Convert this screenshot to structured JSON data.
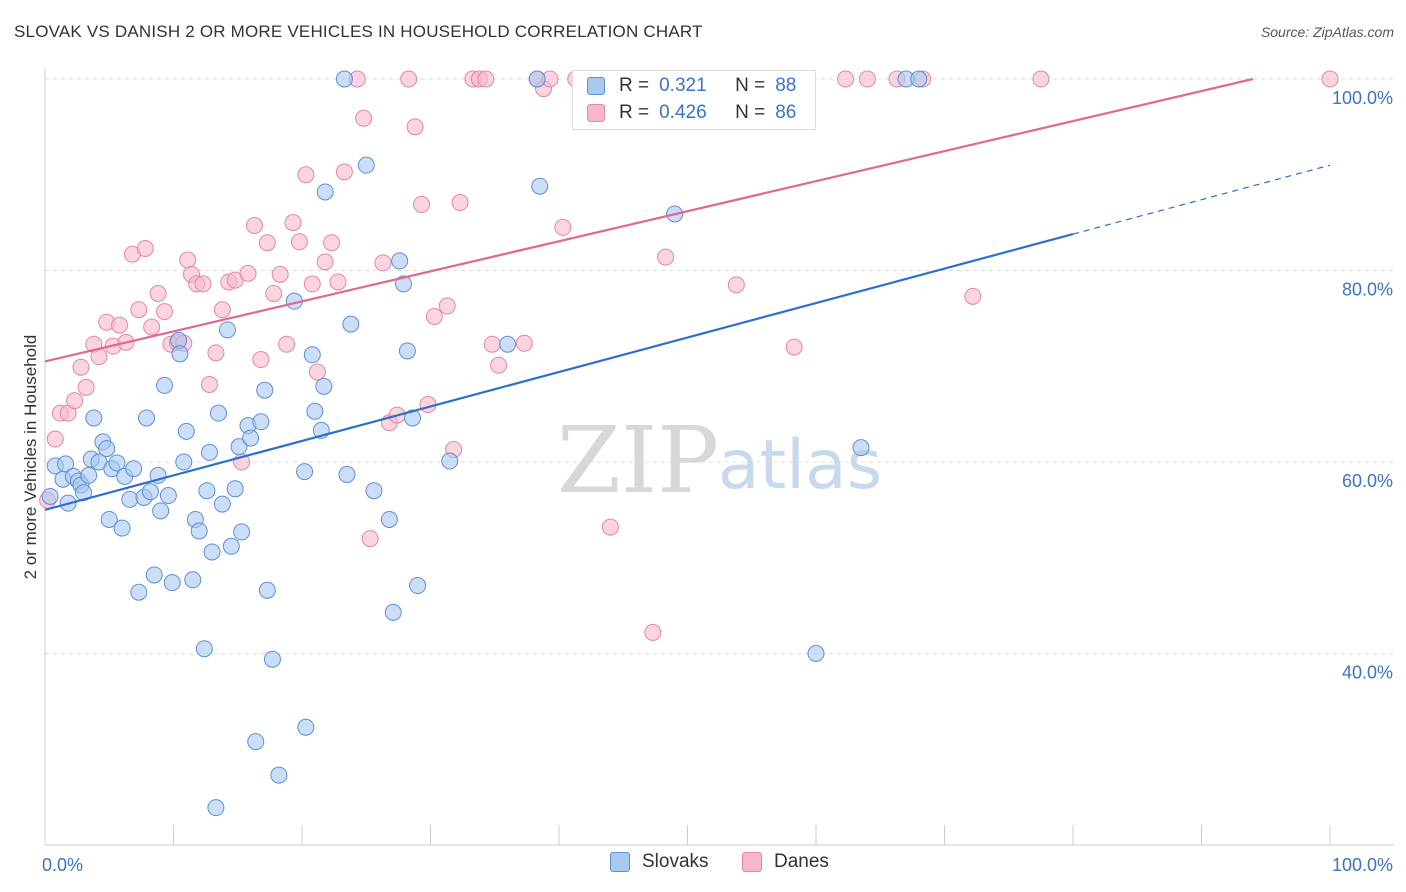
{
  "title": "SLOVAK VS DANISH 2 OR MORE VEHICLES IN HOUSEHOLD CORRELATION CHART",
  "source": "Source: ZipAtlas.com",
  "watermark": {
    "zip": "ZIP",
    "atlas": "atlas"
  },
  "legend": {
    "r_label": "R =",
    "n_label": "N =",
    "rows": [
      {
        "r": "0.321",
        "n": "88"
      },
      {
        "r": "0.426",
        "n": "86"
      }
    ]
  },
  "bottom_legend": [
    "Slovaks",
    "Danes"
  ],
  "colors": {
    "slovak_fill": "#a9c8ef",
    "slovak_stroke": "#5f8fd6",
    "slovak_line": "#2e6fcc",
    "dane_fill": "#f6b7c9",
    "dane_stroke": "#e487a6",
    "dane_line": "#e06892",
    "axis_value_text": "#3a73c8",
    "grid": "#dddddd"
  },
  "chart_data": {
    "type": "scatter",
    "title": "SLOVAK VS DANISH 2 OR MORE VEHICLES IN HOUSEHOLD CORRELATION CHART",
    "xlabel": "",
    "ylabel": "2 or more Vehicles in Household",
    "xlim": [
      0,
      100
    ],
    "ylim": [
      20,
      100
    ],
    "x_tick_labels": [
      "0.0%",
      "100.0%"
    ],
    "y_ticks": [
      40,
      60,
      80,
      100
    ],
    "y_tick_labels": [
      "40.0%",
      "60.0%",
      "80.0%",
      "100.0%"
    ],
    "grid": true,
    "legend_position": "top-center",
    "series": [
      {
        "name": "Slovaks",
        "r": 0.321,
        "n": 88,
        "trend": {
          "x0": 0,
          "y0": 55.0,
          "x1": 80,
          "y1": 83.8,
          "dashed_to_x": 100,
          "dashed_to_y": 91.0
        },
        "points": [
          [
            0.4,
            56.4
          ],
          [
            0.8,
            59.6
          ],
          [
            1.4,
            58.2
          ],
          [
            1.6,
            59.8
          ],
          [
            1.8,
            55.7
          ],
          [
            2.2,
            58.5
          ],
          [
            2.6,
            58.0
          ],
          [
            2.8,
            57.6
          ],
          [
            3.0,
            56.8
          ],
          [
            3.4,
            58.6
          ],
          [
            3.6,
            60.3
          ],
          [
            3.8,
            64.6
          ],
          [
            4.2,
            60.0
          ],
          [
            4.5,
            62.1
          ],
          [
            4.8,
            61.4
          ],
          [
            5.0,
            54.0
          ],
          [
            5.2,
            59.3
          ],
          [
            5.6,
            59.9
          ],
          [
            6.0,
            53.1
          ],
          [
            6.2,
            58.5
          ],
          [
            6.6,
            56.1
          ],
          [
            6.9,
            59.3
          ],
          [
            7.3,
            46.4
          ],
          [
            7.7,
            56.3
          ],
          [
            7.9,
            64.6
          ],
          [
            8.2,
            56.9
          ],
          [
            8.5,
            48.2
          ],
          [
            8.8,
            58.6
          ],
          [
            9.0,
            54.9
          ],
          [
            9.3,
            68.0
          ],
          [
            9.6,
            56.5
          ],
          [
            9.9,
            47.4
          ],
          [
            10.4,
            72.7
          ],
          [
            10.5,
            71.3
          ],
          [
            10.8,
            60.0
          ],
          [
            11.0,
            63.2
          ],
          [
            11.5,
            47.7
          ],
          [
            11.7,
            54.0
          ],
          [
            12.0,
            52.8
          ],
          [
            12.4,
            40.5
          ],
          [
            12.6,
            57.0
          ],
          [
            12.8,
            61.0
          ],
          [
            13.0,
            50.6
          ],
          [
            13.3,
            23.9
          ],
          [
            13.5,
            65.1
          ],
          [
            13.8,
            55.6
          ],
          [
            14.2,
            73.8
          ],
          [
            14.5,
            51.2
          ],
          [
            14.8,
            57.2
          ],
          [
            15.1,
            61.6
          ],
          [
            15.3,
            52.7
          ],
          [
            15.8,
            63.8
          ],
          [
            16.0,
            62.5
          ],
          [
            16.4,
            30.8
          ],
          [
            16.8,
            64.2
          ],
          [
            17.1,
            67.5
          ],
          [
            17.3,
            46.6
          ],
          [
            17.7,
            39.4
          ],
          [
            18.2,
            27.3
          ],
          [
            19.4,
            76.8
          ],
          [
            20.2,
            59.0
          ],
          [
            20.3,
            32.3
          ],
          [
            20.8,
            71.2
          ],
          [
            21.0,
            65.3
          ],
          [
            21.5,
            63.3
          ],
          [
            21.7,
            67.9
          ],
          [
            21.8,
            88.2
          ],
          [
            23.3,
            100.0
          ],
          [
            23.5,
            58.7
          ],
          [
            23.8,
            74.4
          ],
          [
            25.0,
            91.0
          ],
          [
            25.6,
            57.0
          ],
          [
            26.8,
            54.0
          ],
          [
            27.1,
            44.3
          ],
          [
            27.6,
            81.0
          ],
          [
            27.9,
            78.6
          ],
          [
            28.2,
            71.6
          ],
          [
            28.6,
            64.6
          ],
          [
            29.0,
            47.1
          ],
          [
            31.5,
            60.1
          ],
          [
            36.0,
            72.3
          ],
          [
            38.3,
            100.0
          ],
          [
            38.5,
            88.8
          ],
          [
            49.0,
            85.9
          ],
          [
            60.0,
            40.0
          ],
          [
            63.5,
            61.5
          ],
          [
            67.0,
            100.0
          ],
          [
            68.0,
            100.0
          ]
        ]
      },
      {
        "name": "Danes",
        "r": 0.426,
        "n": 86,
        "trend": {
          "x0": 0,
          "y0": 70.5,
          "x1": 94,
          "y1": 100.0
        },
        "points": [
          [
            0.2,
            56.0
          ],
          [
            0.8,
            62.4
          ],
          [
            1.2,
            65.1
          ],
          [
            1.8,
            65.1
          ],
          [
            2.3,
            66.4
          ],
          [
            2.8,
            69.9
          ],
          [
            3.2,
            67.8
          ],
          [
            3.8,
            72.3
          ],
          [
            4.2,
            71.0
          ],
          [
            4.8,
            74.6
          ],
          [
            5.3,
            72.1
          ],
          [
            5.8,
            74.3
          ],
          [
            6.3,
            72.5
          ],
          [
            6.8,
            81.7
          ],
          [
            7.3,
            75.9
          ],
          [
            7.8,
            82.3
          ],
          [
            8.3,
            74.1
          ],
          [
            8.8,
            77.6
          ],
          [
            9.3,
            75.7
          ],
          [
            9.8,
            72.3
          ],
          [
            10.3,
            72.5
          ],
          [
            10.8,
            72.4
          ],
          [
            11.1,
            81.1
          ],
          [
            11.4,
            79.6
          ],
          [
            11.8,
            78.6
          ],
          [
            12.3,
            78.6
          ],
          [
            12.8,
            68.1
          ],
          [
            13.3,
            71.4
          ],
          [
            13.8,
            75.9
          ],
          [
            14.3,
            78.8
          ],
          [
            14.8,
            79.0
          ],
          [
            15.3,
            60.0
          ],
          [
            15.8,
            79.7
          ],
          [
            16.3,
            84.7
          ],
          [
            16.8,
            70.7
          ],
          [
            17.3,
            82.9
          ],
          [
            17.8,
            77.6
          ],
          [
            18.3,
            79.6
          ],
          [
            18.8,
            72.3
          ],
          [
            19.3,
            85.0
          ],
          [
            19.8,
            83.0
          ],
          [
            20.3,
            90.0
          ],
          [
            20.8,
            78.6
          ],
          [
            21.2,
            69.4
          ],
          [
            21.8,
            80.9
          ],
          [
            22.3,
            82.9
          ],
          [
            22.8,
            78.8
          ],
          [
            23.3,
            90.3
          ],
          [
            24.3,
            100.0
          ],
          [
            24.8,
            95.9
          ],
          [
            25.3,
            52.0
          ],
          [
            26.3,
            80.8
          ],
          [
            26.8,
            64.1
          ],
          [
            27.4,
            64.9
          ],
          [
            28.3,
            100.0
          ],
          [
            28.8,
            95.0
          ],
          [
            29.3,
            86.9
          ],
          [
            29.8,
            66.0
          ],
          [
            30.3,
            75.2
          ],
          [
            31.3,
            76.3
          ],
          [
            31.8,
            61.3
          ],
          [
            32.3,
            87.1
          ],
          [
            33.3,
            100.0
          ],
          [
            33.8,
            100.0
          ],
          [
            34.3,
            100.0
          ],
          [
            34.8,
            72.3
          ],
          [
            35.3,
            70.1
          ],
          [
            37.3,
            72.4
          ],
          [
            38.3,
            100.0
          ],
          [
            38.8,
            99.0
          ],
          [
            39.3,
            100.0
          ],
          [
            40.3,
            84.5
          ],
          [
            41.3,
            100.0
          ],
          [
            42.3,
            100.0
          ],
          [
            44.0,
            53.2
          ],
          [
            47.3,
            42.2
          ],
          [
            48.3,
            81.4
          ],
          [
            53.8,
            78.5
          ],
          [
            58.3,
            72.0
          ],
          [
            62.3,
            100.0
          ],
          [
            64.0,
            100.0
          ],
          [
            66.3,
            100.0
          ],
          [
            68.3,
            100.0
          ],
          [
            72.2,
            77.3
          ],
          [
            77.5,
            100.0
          ],
          [
            100.0,
            100.0
          ]
        ]
      }
    ]
  }
}
